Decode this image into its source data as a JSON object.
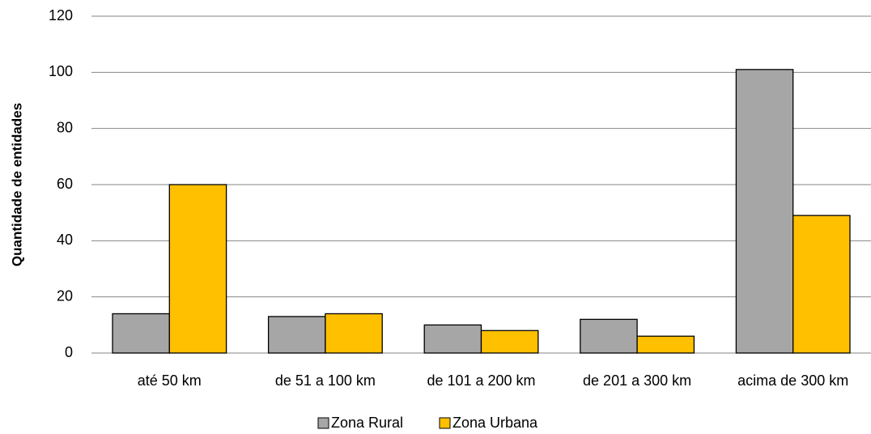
{
  "chart_data": {
    "type": "bar",
    "y_label": "Quantidade de entidades",
    "categories": [
      "até 50 km",
      "de 51 a 100 km",
      "de 101 a 200 km",
      "de 201 a 300 km",
      "acima de 300 km"
    ],
    "series": [
      {
        "name": "Zona Rural",
        "color": "#a6a6a6",
        "values": [
          14,
          13,
          10,
          12,
          101
        ]
      },
      {
        "name": "Zona Urbana",
        "color": "#ffc000",
        "values": [
          60,
          14,
          8,
          6,
          49
        ]
      }
    ],
    "ylim": [
      0,
      120
    ],
    "yticks": [
      0,
      20,
      40,
      60,
      80,
      100,
      120
    ],
    "grid": true,
    "legend": "bottom"
  }
}
